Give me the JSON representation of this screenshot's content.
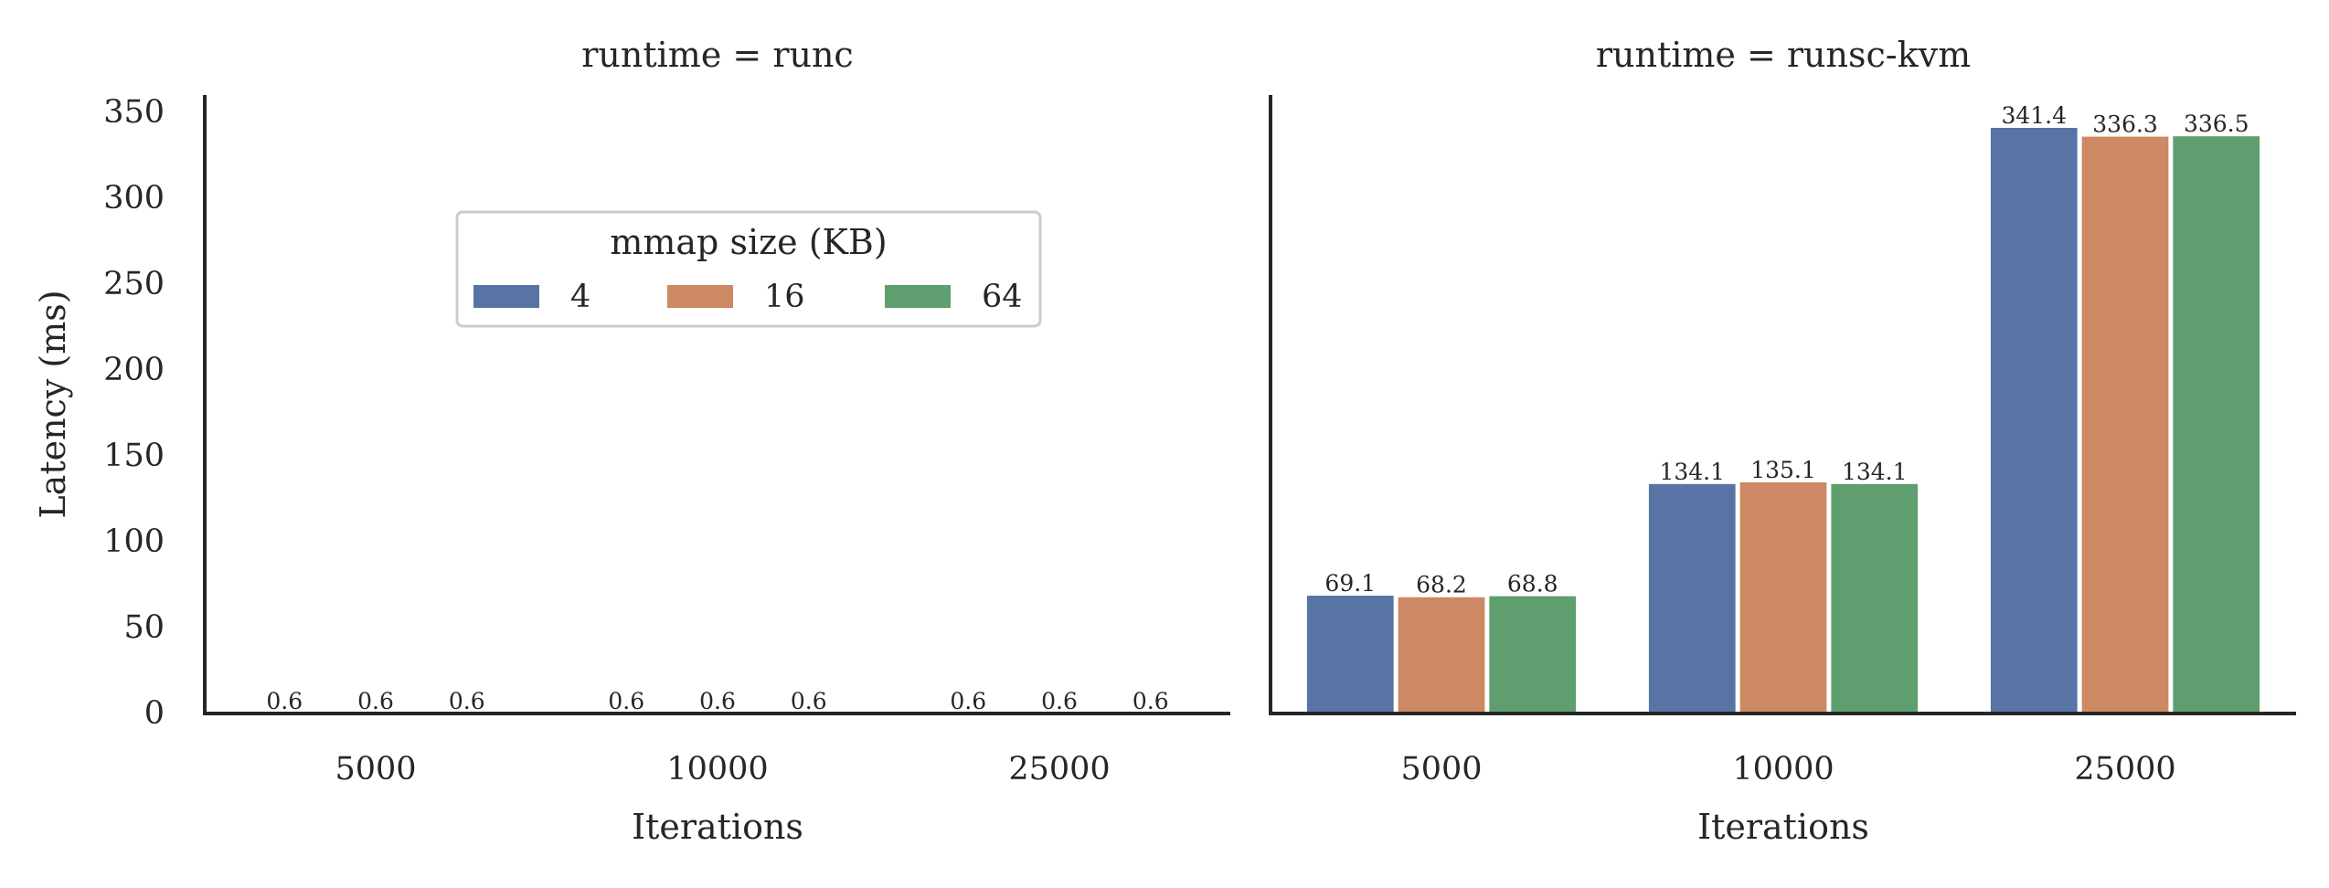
{
  "chart_data": {
    "type": "bar",
    "facet_variable": "runtime",
    "panels": [
      {
        "title": "runtime = runc",
        "runtime": "runc"
      },
      {
        "title": "runtime = runsc-kvm",
        "runtime": "runsc-kvm"
      }
    ],
    "categories": [
      "5000",
      "10000",
      "25000"
    ],
    "xlabel": "Iterations",
    "ylabel": "Latency (ms)",
    "ylim": [
      0,
      360
    ],
    "yticks": [
      0,
      50,
      100,
      150,
      200,
      250,
      300,
      350
    ],
    "legend": {
      "title": "mmap size (KB)",
      "placement": "upper center of left panel",
      "entries": [
        "4",
        "16",
        "64"
      ]
    },
    "series": [
      {
        "name": "4",
        "color": "#5874a4",
        "values": {
          "runc": [
            0.6,
            0.6,
            0.6
          ],
          "runsc-kvm": [
            69.1,
            134.1,
            341.4
          ]
        }
      },
      {
        "name": "16",
        "color": "#cc8963",
        "values": {
          "runc": [
            0.6,
            0.6,
            0.6
          ],
          "runsc-kvm": [
            68.2,
            135.1,
            336.3
          ]
        }
      },
      {
        "name": "64",
        "color": "#5f9e6e",
        "values": {
          "runc": [
            0.6,
            0.6,
            0.6
          ],
          "runsc-kvm": [
            68.8,
            134.1,
            336.5
          ]
        }
      }
    ],
    "grid": false,
    "shared_y_axis": true
  }
}
